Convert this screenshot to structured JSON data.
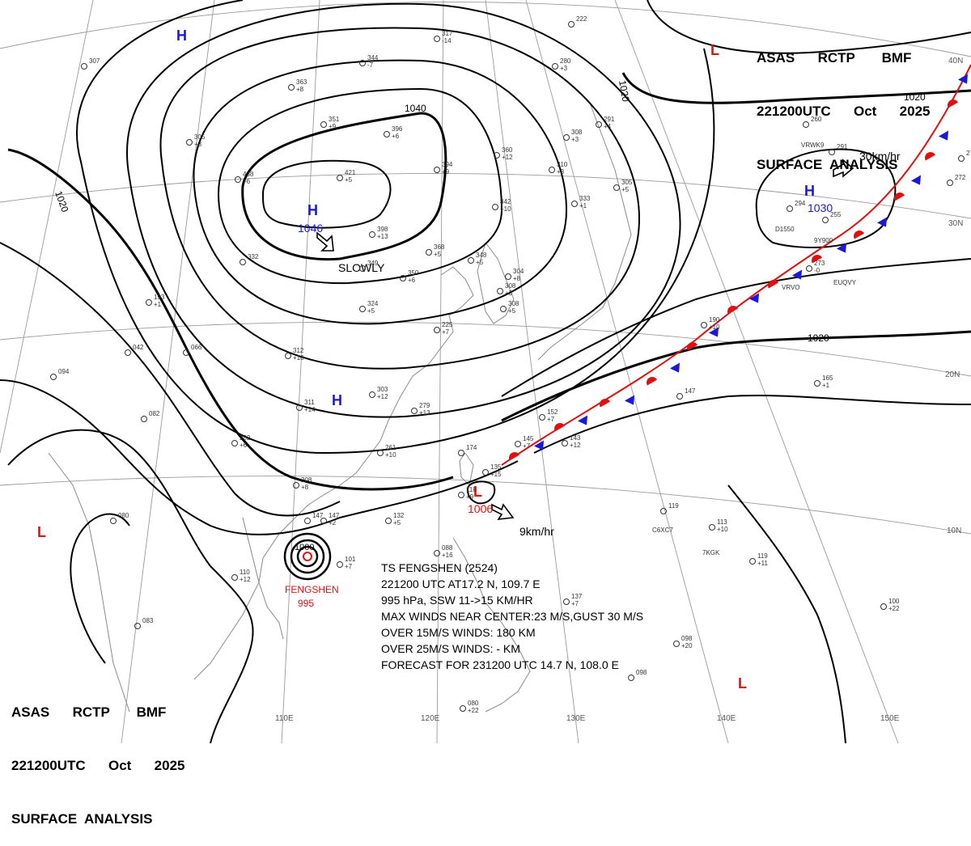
{
  "header": {
    "line1": "ASAS      RCTP       BMF",
    "line2": "221200UTC      Oct      2025",
    "line3": "SURFACE  ANALYSIS"
  },
  "isobars": [
    {
      "value": "1040",
      "label": "1040"
    },
    {
      "value": "1020",
      "label": "1020"
    }
  ],
  "pressure_centers": [
    {
      "type": "H",
      "value": "1046",
      "motion": "SLOWLY",
      "color": "#1a1ad6"
    },
    {
      "type": "H",
      "value": "1030",
      "motion": "30km/hr",
      "color": "#1a1ad6"
    },
    {
      "type": "H",
      "value": "",
      "motion": "",
      "color": "#1a1ad6"
    },
    {
      "type": "H",
      "value": "",
      "motion": "",
      "color": "#1a1ad6"
    },
    {
      "type": "L",
      "value": "1006",
      "motion": "9km/hr",
      "color": "#e01010"
    },
    {
      "type": "L",
      "value": "",
      "motion": "",
      "color": "#e01010"
    },
    {
      "type": "L",
      "value": "",
      "motion": "",
      "color": "#e01010"
    },
    {
      "type": "L",
      "value": "",
      "motion": "",
      "color": "#e01010"
    }
  ],
  "typhoon": {
    "name": "FENGSHEN",
    "pressure": "995",
    "inner_isobar": "1000",
    "info_lines": [
      "TS  FENGSHEN  (2524)",
      "221200 UTC AT17.2 N, 109.7 E",
      "995 hPa, SSW  11->15 KM/HR",
      "MAX WINDS NEAR CENTER:23 M/S,GUST 30 M/S",
      "OVER 15M/S WINDS: 180 KM",
      "OVER 25M/S WINDS: - KM",
      "FORECAST FOR 231200 UTC 14.7 N, 108.0 E"
    ]
  },
  "longitude_labels": [
    "110E",
    "120E",
    "130E",
    "140E",
    "150E"
  ],
  "latitude_labels": [
    "40N",
    "30N",
    "20N",
    "10N"
  ],
  "station_plots": [
    {
      "p": "317",
      "t": "-14"
    },
    {
      "p": "222",
      "t": ""
    },
    {
      "p": "307",
      "t": ""
    },
    {
      "p": "344",
      "t": "-7"
    },
    {
      "p": "363",
      "t": "+8"
    },
    {
      "p": "351",
      "t": "+9"
    },
    {
      "p": "396",
      "t": "+6"
    },
    {
      "p": "305",
      "t": "+3"
    },
    {
      "p": "438",
      "t": "+6"
    },
    {
      "p": "421",
      "t": "+5"
    },
    {
      "p": "394",
      "t": "+9"
    },
    {
      "p": "360",
      "t": "+12"
    },
    {
      "p": "398",
      "t": "+13"
    },
    {
      "p": "342",
      "t": "+10"
    },
    {
      "p": "280",
      "t": "+3"
    },
    {
      "p": "308",
      "t": "+3"
    },
    {
      "p": "291",
      "t": "+4"
    },
    {
      "p": "310",
      "t": "+3"
    },
    {
      "p": "333",
      "t": "+1"
    },
    {
      "p": "305",
      "t": "+5"
    },
    {
      "p": "332",
      "t": ""
    },
    {
      "p": "349",
      "t": ""
    },
    {
      "p": "350",
      "t": "+6"
    },
    {
      "p": "368",
      "t": "+5"
    },
    {
      "p": "348",
      "t": "+5"
    },
    {
      "p": "304",
      "t": "+8"
    },
    {
      "p": "308",
      "t": "+3"
    },
    {
      "p": "308",
      "t": "+5"
    },
    {
      "p": "193",
      "t": "+1"
    },
    {
      "p": "324",
      "t": "+5"
    },
    {
      "p": "094",
      "t": ""
    },
    {
      "p": "042",
      "t": ""
    },
    {
      "p": "066",
      "t": ""
    },
    {
      "p": "312",
      "t": "+10"
    },
    {
      "p": "303",
      "t": "+12"
    },
    {
      "p": "311",
      "t": "+14"
    },
    {
      "p": "279",
      "t": "+13"
    },
    {
      "p": "225",
      "t": "+7"
    },
    {
      "p": "082",
      "t": ""
    },
    {
      "p": "202",
      "t": "+6"
    },
    {
      "p": "261",
      "t": "+10"
    },
    {
      "p": "152",
      "t": "+7"
    },
    {
      "p": "143",
      "t": "+12"
    },
    {
      "p": "174",
      "t": ""
    },
    {
      "p": "145",
      "t": "+7"
    },
    {
      "p": "135",
      "t": "+15"
    },
    {
      "p": "118",
      "t": "+9"
    },
    {
      "p": "147",
      "t": ""
    },
    {
      "p": "208",
      "t": "+8"
    },
    {
      "p": "147",
      "t": "+2"
    },
    {
      "p": "132",
      "t": "+5"
    },
    {
      "p": "080",
      "t": ""
    },
    {
      "p": "110",
      "t": "+12"
    },
    {
      "p": "101",
      "t": "+7"
    },
    {
      "p": "088",
      "t": "+16"
    },
    {
      "p": "137",
      "t": "+7"
    },
    {
      "p": "083",
      "t": ""
    },
    {
      "p": "098",
      "t": "+20"
    },
    {
      "p": "098",
      "t": ""
    },
    {
      "p": "080",
      "t": "+22"
    },
    {
      "p": "119",
      "t": ""
    },
    {
      "p": "113",
      "t": "+10"
    },
    {
      "p": "119",
      "t": "+11"
    },
    {
      "p": "100",
      "t": "+22"
    },
    {
      "p": "147",
      "t": ""
    },
    {
      "p": "165",
      "t": "+1"
    },
    {
      "p": "260",
      "t": ""
    },
    {
      "p": "291",
      "t": ""
    },
    {
      "p": "294",
      "t": ""
    },
    {
      "p": "255",
      "t": ""
    },
    {
      "p": "273",
      "t": "-0"
    },
    {
      "p": "275",
      "t": ""
    },
    {
      "p": "272",
      "t": ""
    },
    {
      "p": "190",
      "t": "+10"
    }
  ],
  "ship_ids": [
    "VRWK9",
    "D1550",
    "9Y900",
    "VRVO",
    "EUQVY",
    "C6XC7",
    "7KGK"
  ],
  "colors": {
    "isobar": "#000000",
    "high": "#1a1ad6",
    "low": "#e01010",
    "warm_front": "#e01010",
    "cold_front": "#1a1ad6",
    "grid": "#9a9a9a",
    "coast": "#8a8a8a"
  }
}
